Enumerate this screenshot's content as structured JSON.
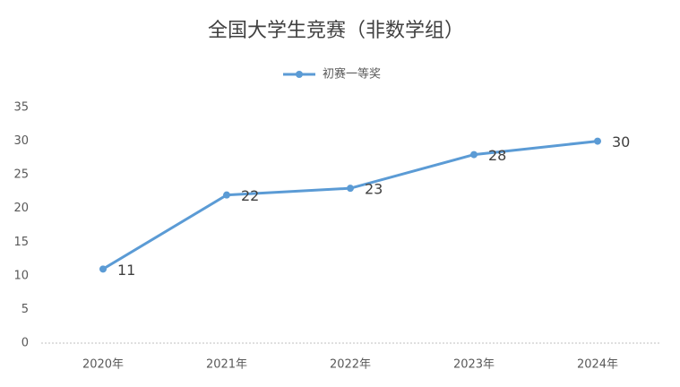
{
  "chart_data": {
    "type": "line",
    "title": "全国大学生竞赛（非数学组）",
    "categories": [
      "2020年",
      "2021年",
      "2022年",
      "2023年",
      "2024年"
    ],
    "series": [
      {
        "name": "初赛一等奖",
        "color": "#5b9bd5",
        "values": [
          11,
          22,
          23,
          28,
          30
        ]
      }
    ],
    "ylim": [
      0,
      35
    ],
    "yticks": [
      0,
      5,
      10,
      15,
      20,
      25,
      30,
      35
    ],
    "grid": false,
    "legend": "top",
    "data_labels": true
  }
}
